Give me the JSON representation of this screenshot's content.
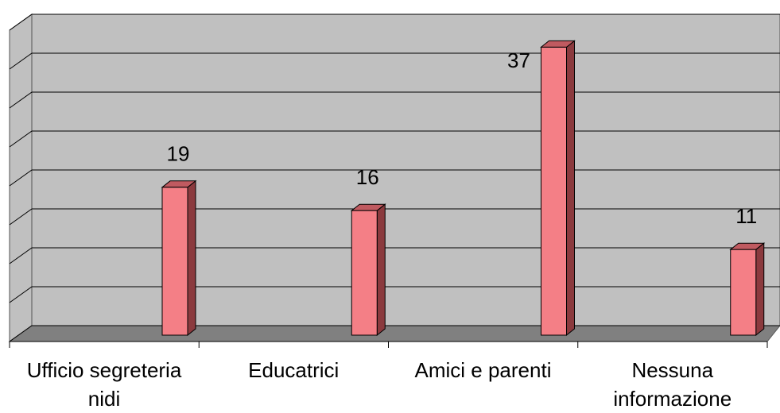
{
  "chart_data": {
    "type": "bar3d",
    "categories": [
      "Ufficio segreteria nidi",
      "Educatrici",
      "Amici e parenti",
      "Nessuna informazione"
    ],
    "values": [
      19,
      16,
      37,
      11
    ],
    "color": "#f47f86",
    "ylim": [
      0,
      40
    ],
    "yticks": [
      0,
      5,
      10,
      15,
      20,
      25,
      30,
      35,
      40
    ],
    "grid": true
  }
}
